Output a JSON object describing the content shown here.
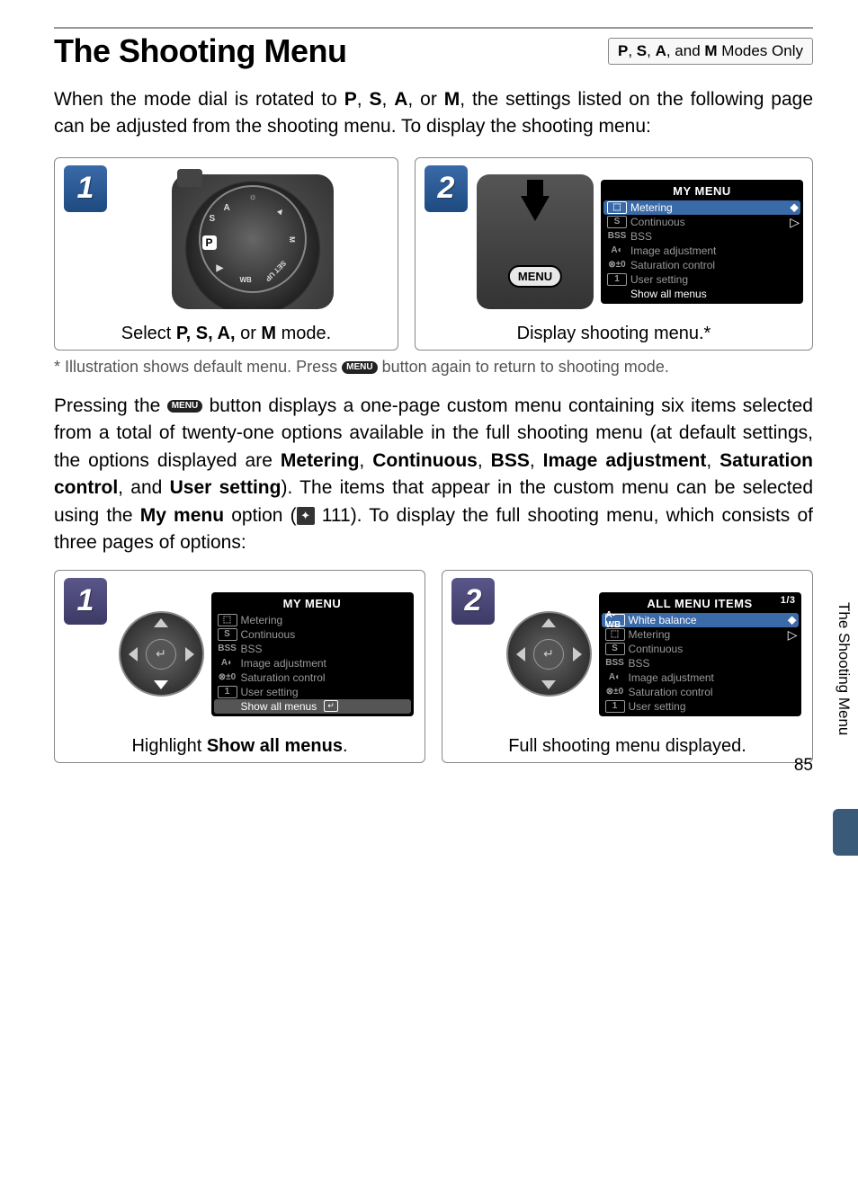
{
  "page": {
    "title": "The Shooting Menu",
    "mode_badge_prefix": "",
    "mode_badge_bold": [
      "P",
      "S",
      "A",
      "M"
    ],
    "mode_badge_suffix": " Modes Only",
    "intro_parts": [
      "When the mode dial is rotated to ",
      ", the settings listed on the following page can be adjusted from the shooting menu.  To display the shooting menu:"
    ],
    "intro_modes": [
      "P",
      "S",
      "A",
      "M"
    ],
    "footnote": "* Illustration shows default menu.  Press ",
    "footnote_after": " button again to return to shooting mode.",
    "body_parts": {
      "p1": "Pressing the ",
      "p2": " button displays a one-page custom menu containing six items selected from a total of twenty-one options available in the full shooting menu (at default settings, the options displayed are ",
      "bold_list": [
        "Metering",
        "Continuous",
        "BSS",
        "Image adjustment",
        "Saturation control",
        "User setting"
      ],
      "p3": ").  The items that appear in the custom menu can be selected using the ",
      "bold_my": "My menu",
      "p4": " option (",
      "ref": "111",
      "p5": ").  To display the full shooting menu, which consists of three pages of options:"
    },
    "side_tab": "The Shooting Menu",
    "page_number": "85"
  },
  "steps_top": [
    {
      "num": "1",
      "num_color": "blue",
      "caption_prefix": "Select ",
      "caption_bold": "P, S, A, or M",
      "caption_suffix": " mode.",
      "graphic": "dial"
    },
    {
      "num": "2",
      "num_color": "blue",
      "caption_prefix": "Display shooting menu.",
      "caption_bold": "",
      "caption_suffix": "*",
      "graphic": "menubtn",
      "lcd": "my_menu"
    }
  ],
  "steps_bottom": [
    {
      "num": "1",
      "num_color": "purple",
      "caption_prefix": "Highlight ",
      "caption_bold": "Show all menus",
      "caption_suffix": ".",
      "graphic": "dpad",
      "lcd": "my_menu_bottom"
    },
    {
      "num": "2",
      "num_color": "purple",
      "caption_prefix": "Full shooting menu displayed.",
      "caption_bold": "",
      "caption_suffix": "",
      "graphic": "dpad",
      "lcd": "all_menu"
    }
  ],
  "lcd_screens": {
    "my_menu": {
      "title": "MY MENU",
      "page_ind": "",
      "rows": [
        {
          "icon": "⬚",
          "label": "Metering",
          "sel": true
        },
        {
          "icon": "S",
          "label": "Continuous",
          "sel": false
        },
        {
          "icon": "BSS",
          "label": "BSS",
          "sel": false,
          "noborder": true
        },
        {
          "icon": "A◐",
          "label": "Image adjustment",
          "sel": false,
          "noborder": true
        },
        {
          "icon": "⊗±0",
          "label": "Saturation control",
          "sel": false,
          "noborder": true
        },
        {
          "icon": "1",
          "label": "User setting",
          "sel": false
        },
        {
          "icon": "",
          "label": "Show all menus",
          "sel": false,
          "white": true,
          "noborder": true
        }
      ]
    },
    "my_menu_bottom": {
      "title": "MY MENU",
      "page_ind": "",
      "rows": [
        {
          "icon": "⬚",
          "label": "Metering",
          "sel": false
        },
        {
          "icon": "S",
          "label": "Continuous",
          "sel": false
        },
        {
          "icon": "BSS",
          "label": "BSS",
          "sel": false,
          "noborder": true
        },
        {
          "icon": "A◐",
          "label": "Image adjustment",
          "sel": false,
          "noborder": true
        },
        {
          "icon": "⊗±0",
          "label": "Saturation control",
          "sel": false,
          "noborder": true
        },
        {
          "icon": "1",
          "label": "User setting",
          "sel": false
        },
        {
          "icon": "",
          "label": "Show all menus",
          "sel": false,
          "bottom_sel": true,
          "enter": true,
          "noborder": true
        }
      ]
    },
    "all_menu": {
      "title": "ALL MENU ITEMS",
      "page_ind": "1/3",
      "rows": [
        {
          "icon": "A-WB",
          "label": "White balance",
          "sel": true
        },
        {
          "icon": "⬚",
          "label": "Metering",
          "sel": false
        },
        {
          "icon": "S",
          "label": "Continuous",
          "sel": false
        },
        {
          "icon": "BSS",
          "label": "BSS",
          "sel": false,
          "noborder": true
        },
        {
          "icon": "A◐",
          "label": "Image adjustment",
          "sel": false,
          "noborder": true
        },
        {
          "icon": "⊗±0",
          "label": "Saturation control",
          "sel": false,
          "noborder": true
        },
        {
          "icon": "1",
          "label": "User setting",
          "sel": false
        }
      ]
    }
  },
  "colors": {
    "step_blue": "#1e4a80",
    "step_purple": "#3d3a66",
    "lcd_sel": "#3a6aa8",
    "side_tab": "#3a5a7a"
  }
}
